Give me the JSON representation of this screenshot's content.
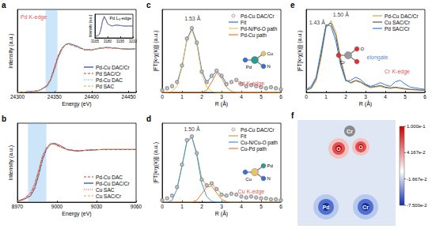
{
  "chart_data": [
    {
      "type": "line",
      "title": "a",
      "xlabel": "Energy (eV)",
      "ylabel": "Intensity (a.u.)",
      "x": [
        24300,
        24320,
        24330,
        24340,
        24345,
        24350,
        24355,
        24360,
        24365,
        24370,
        24380,
        24390,
        24400,
        24410,
        24420,
        24430,
        24440,
        24450,
        24460
      ],
      "xlim": [
        24300,
        24460
      ],
      "xticks": [
        24300,
        24350,
        24400,
        24450
      ],
      "ylim": [
        0,
        1.9
      ],
      "tick_labels": "x",
      "grid": false,
      "legend": "lower right",
      "shaded_x": [
        24338,
        24354
      ],
      "annotations": [
        {
          "text": "Pd K-edge",
          "x": 24322,
          "y": 1.72,
          "color": "#e02020"
        }
      ],
      "series": [
        {
          "name": "Pd-Cu DAC/Cr",
          "color": "#1f3fbf",
          "line_style": "solid",
          "values": [
            0.0,
            0.02,
            0.05,
            0.15,
            0.3,
            0.55,
            0.82,
            1.0,
            1.1,
            1.12,
            1.06,
            0.98,
            0.97,
            1.01,
            1.03,
            1.02,
            1.0,
            0.99,
            1.0
          ]
        },
        {
          "name": "Pd SAC/Cr",
          "color": "#e0304f",
          "line_style": "dashed",
          "values": [
            0.0,
            0.02,
            0.05,
            0.16,
            0.32,
            0.58,
            0.85,
            1.02,
            1.1,
            1.1,
            1.04,
            0.98,
            0.98,
            1.01,
            1.02,
            1.01,
            1.0,
            1.0,
            1.0
          ]
        },
        {
          "name": "Pd-Cu DAC",
          "color": "#3fa9e0",
          "line_style": "dotted",
          "values": [
            0.0,
            0.02,
            0.04,
            0.13,
            0.27,
            0.5,
            0.78,
            0.97,
            1.09,
            1.12,
            1.07,
            0.99,
            0.97,
            1.0,
            1.03,
            1.02,
            1.0,
            0.99,
            1.0
          ]
        },
        {
          "name": "Pd SAC",
          "color": "#f0a030",
          "line_style": "dashed",
          "values": [
            0.0,
            0.02,
            0.05,
            0.14,
            0.29,
            0.53,
            0.8,
            0.99,
            1.1,
            1.11,
            1.05,
            0.98,
            0.97,
            1.01,
            1.03,
            1.02,
            1.0,
            1.0,
            1.0
          ]
        }
      ]
    },
    {
      "type": "line",
      "title": "Pd L₃-edge",
      "ylabel": "Intensity (a.u.)",
      "x": [
        3165,
        3170,
        3172,
        3174,
        3176,
        3178,
        3180,
        3185,
        3190,
        3195,
        3200,
        3205,
        3210
      ],
      "xlim": [
        3165,
        3210
      ],
      "xticks": [
        3165,
        3180,
        3195,
        3210
      ],
      "ylim": [
        0,
        2.2
      ],
      "tick_labels": "x",
      "grid": false,
      "series": [
        {
          "color": "#1f3fbf",
          "line_style": "solid",
          "values": [
            0.1,
            0.3,
            0.8,
            1.6,
            2.0,
            1.7,
            1.3,
            1.1,
            1.2,
            1.15,
            1.1,
            1.1,
            1.1
          ]
        },
        {
          "color": "#888888",
          "line_style": "solid",
          "values": [
            0.1,
            0.3,
            0.75,
            1.5,
            1.9,
            1.65,
            1.3,
            1.1,
            1.18,
            1.15,
            1.1,
            1.1,
            1.1
          ]
        }
      ]
    },
    {
      "type": "line",
      "title": "b",
      "xlabel": "Energy (eV)",
      "ylabel": "Intensity (a.u.)",
      "x": [
        8970,
        8975,
        8980,
        8983,
        8986,
        8989,
        8992,
        8995,
        8998,
        9002,
        9008,
        9015,
        9025,
        9035,
        9045,
        9060
      ],
      "xlim": [
        8970,
        9060
      ],
      "xticks": [
        8970,
        9000,
        9030,
        9060
      ],
      "ylim": [
        0,
        1.5
      ],
      "tick_labels": "x",
      "grid": false,
      "legend": "lower right",
      "shaded_x": [
        8978,
        8992
      ],
      "series": [
        {
          "name": "Pd-Cu DAC",
          "color": "#e0304f",
          "line_style": "dashed",
          "values": [
            0.02,
            0.06,
            0.15,
            0.3,
            0.56,
            0.85,
            1.02,
            1.1,
            1.1,
            1.06,
            1.0,
            0.98,
            0.99,
            1.0,
            1.0,
            1.0
          ]
        },
        {
          "name": "Pd-Cu DAC/Cr",
          "color": "#1f3fbf",
          "line_style": "solid",
          "values": [
            0.02,
            0.05,
            0.12,
            0.25,
            0.5,
            0.8,
            1.0,
            1.1,
            1.12,
            1.08,
            1.0,
            0.97,
            0.99,
            1.0,
            1.0,
            1.0
          ]
        },
        {
          "name": "Cu SAC",
          "color": "#c0392b",
          "line_style": "dotted",
          "values": [
            0.02,
            0.07,
            0.18,
            0.35,
            0.6,
            0.88,
            1.04,
            1.11,
            1.1,
            1.05,
            0.99,
            0.97,
            0.99,
            1.0,
            1.0,
            1.0
          ]
        },
        {
          "name": "Cu SAC/Cr",
          "color": "#f0a030",
          "line_style": "dashed",
          "values": [
            0.02,
            0.05,
            0.13,
            0.27,
            0.52,
            0.82,
            1.01,
            1.1,
            1.11,
            1.07,
            1.0,
            0.97,
            0.99,
            1.0,
            1.0,
            1.0
          ]
        }
      ]
    },
    {
      "type": "line",
      "title": "c",
      "xlabel": "R (Å)",
      "ylabel": "|FT[k³χ(k)]| (a.u.)",
      "x": [
        0,
        0.25,
        0.5,
        0.75,
        1,
        1.25,
        1.5,
        1.75,
        2,
        2.25,
        2.5,
        2.75,
        3,
        3.25,
        3.5,
        3.75,
        4,
        4.25,
        4.5,
        4.75,
        5,
        5.25,
        5.5,
        5.75,
        6
      ],
      "xlim": [
        0,
        6
      ],
      "xticks": [
        0,
        1,
        2,
        3,
        4,
        5,
        6
      ],
      "ylim": [
        0,
        4
      ],
      "tick_labels": "x",
      "grid": false,
      "legend": "upper right",
      "structure": {
        "center": "Pd",
        "ligands": [
          "Cu",
          "N"
        ]
      },
      "annotations": [
        {
          "text": "1.53 Å",
          "x": 1.53,
          "y": 3.55,
          "color": "#000000"
        },
        {
          "text": "Pd K-edge",
          "x": 4.5,
          "y": 0.45,
          "color": "#e02020"
        }
      ],
      "series": [
        {
          "name": "Pd-Cu DAC/Cr",
          "type": "scatter",
          "marker": "circle",
          "color": "#8c8c8c",
          "values": [
            0.1,
            0.2,
            0.3,
            0.5,
            1.3,
            2.6,
            3.1,
            2.4,
            1.0,
            0.5,
            0.8,
            1.05,
            0.8,
            0.4,
            0.5,
            0.6,
            0.4,
            0.3,
            0.35,
            0.3,
            0.25,
            0.2,
            0.25,
            0.2,
            0.15
          ]
        },
        {
          "name": "Fit",
          "color": "#2e6fd8",
          "line_style": "solid",
          "values": [
            null,
            null,
            null,
            0.45,
            1.25,
            2.55,
            3.08,
            2.42,
            1.05,
            0.48,
            0.78,
            1.02,
            0.82,
            0.42,
            null,
            null,
            null,
            null,
            null,
            null,
            null,
            null,
            null,
            null,
            null
          ]
        },
        {
          "name": "Pd-N/Pd-O path",
          "color": "#f2c14e",
          "line_style": "solid",
          "values": [
            0,
            0,
            0.05,
            0.3,
            1.2,
            2.5,
            3.0,
            2.3,
            0.9,
            0.25,
            0.05,
            0,
            0,
            0,
            0,
            0,
            0,
            0,
            0,
            0,
            0,
            0,
            0,
            0,
            0
          ]
        },
        {
          "name": "Pd-Cu path",
          "color": "#e67e22",
          "line_style": "solid",
          "values": [
            0,
            0,
            0,
            0,
            0,
            0,
            0,
            0,
            0,
            0.1,
            0.5,
            0.95,
            0.7,
            0.25,
            0.05,
            0,
            0,
            0,
            0,
            0,
            0,
            0,
            0,
            0,
            0
          ]
        }
      ]
    },
    {
      "type": "line",
      "title": "d",
      "xlabel": "R (Å)",
      "ylabel": "|FT[k³χ(k)]| (a.u.)",
      "x": [
        0,
        0.25,
        0.5,
        0.75,
        1,
        1.25,
        1.5,
        1.75,
        2,
        2.25,
        2.5,
        2.75,
        3,
        3.25,
        3.5,
        3.75,
        4,
        4.25,
        4.5,
        4.75,
        5,
        5.25,
        5.5,
        5.75,
        6
      ],
      "xlim": [
        0,
        6
      ],
      "xticks": [
        0,
        1,
        2,
        3,
        4,
        5,
        6
      ],
      "ylim": [
        0,
        4.2
      ],
      "tick_labels": "x",
      "grid": false,
      "legend": "upper right",
      "structure": {
        "center": "Cu",
        "ligands": [
          "Pd",
          "N"
        ]
      },
      "annotations": [
        {
          "text": "1.50 Å",
          "x": 1.5,
          "y": 3.9,
          "color": "#000000"
        },
        {
          "text": "Cu K-edge",
          "x": 4.5,
          "y": 0.55,
          "color": "#e02020"
        }
      ],
      "series": [
        {
          "name": "Pd-Cu DAC/Cr",
          "type": "scatter",
          "marker": "circle",
          "color": "#8c8c8c",
          "values": [
            0.1,
            0.2,
            0.35,
            0.8,
            2.0,
            3.3,
            3.5,
            2.6,
            1.2,
            0.9,
            1.0,
            0.7,
            0.4,
            0.35,
            0.45,
            0.4,
            0.3,
            0.25,
            0.3,
            0.25,
            0.2,
            0.2,
            0.15,
            0.15,
            0.1
          ]
        },
        {
          "name": "Fit",
          "color": "#c8a050",
          "line_style": "solid",
          "values": [
            null,
            null,
            null,
            0.75,
            1.95,
            3.25,
            3.48,
            2.62,
            1.25,
            0.88,
            0.98,
            0.72,
            0.42,
            0.3,
            null,
            null,
            null,
            null,
            null,
            null,
            null,
            null,
            null,
            null,
            null
          ]
        },
        {
          "name": "Cu-N/Cu-O path",
          "color": "#3a9ad9",
          "line_style": "solid",
          "values": [
            0,
            0,
            0.1,
            0.7,
            1.9,
            3.2,
            3.45,
            2.5,
            1.0,
            0.3,
            0.05,
            0,
            0,
            0,
            0,
            0,
            0,
            0,
            0,
            0,
            0,
            0,
            0,
            0,
            0
          ]
        },
        {
          "name": "Cu-Pd path",
          "color": "#e67e22",
          "line_style": "solid",
          "values": [
            0,
            0,
            0,
            0,
            0,
            0,
            0,
            0.1,
            0.45,
            0.8,
            0.85,
            0.5,
            0.15,
            0.03,
            0,
            0,
            0,
            0,
            0,
            0,
            0,
            0,
            0,
            0,
            0
          ]
        }
      ]
    },
    {
      "type": "line",
      "title": "e",
      "xlabel": "R (Å)",
      "ylabel": "|FT[k³χ(k)]| (a.u.)",
      "x": [
        0,
        0.25,
        0.5,
        0.75,
        1,
        1.25,
        1.5,
        1.75,
        2,
        2.25,
        2.5,
        2.75,
        3,
        3.25,
        3.5,
        3.75,
        4,
        4.25,
        4.5,
        4.75,
        5,
        5.25,
        5.5,
        5.75,
        6
      ],
      "xlim": [
        0,
        6
      ],
      "xticks": [
        0,
        1,
        2,
        3,
        4,
        5,
        6
      ],
      "ylim": [
        0,
        11
      ],
      "tick_labels": "x",
      "grid": false,
      "legend": "upper right",
      "structure": {
        "center": "Cr",
        "ligands": [
          "O"
        ]
      },
      "annotations": [
        {
          "text": "1.50 Å",
          "x": 1.75,
          "y": 10.3,
          "color": "#000000"
        },
        {
          "text": "1.43 Å",
          "x": 0.55,
          "y": 9.3,
          "color": "#000000"
        },
        {
          "text": "elongate",
          "x": 3.6,
          "y": 4.7,
          "color": "#2060d0"
        },
        {
          "text": "Cr K-edge",
          "x": 4.6,
          "y": 2.8,
          "color": "#e02020"
        }
      ],
      "series": [
        {
          "name": "Pd-Cu DAC/Cr",
          "color": "#d9a441",
          "line_style": "solid",
          "values": [
            0.3,
            0.5,
            1.5,
            4.5,
            8.5,
            9.5,
            8.0,
            4.5,
            1.8,
            1.2,
            1.5,
            1.3,
            0.9,
            0.6,
            0.7,
            0.8,
            0.6,
            0.5,
            0.6,
            0.5,
            0.4,
            0.4,
            0.3,
            0.3,
            0.3
          ]
        },
        {
          "name": "Cu SAC/Cr",
          "color": "#555555",
          "line_style": "solid",
          "values": [
            0.3,
            0.6,
            1.8,
            5.0,
            8.8,
            9.2,
            7.5,
            4.0,
            1.6,
            1.3,
            1.6,
            1.4,
            1.0,
            0.7,
            0.8,
            0.9,
            0.7,
            0.6,
            0.7,
            0.6,
            0.5,
            0.4,
            0.4,
            0.3,
            0.3
          ]
        },
        {
          "name": "Pd SAC/Cr",
          "color": "#2e7bd8",
          "line_style": "solid",
          "values": [
            0.4,
            0.8,
            2.0,
            5.5,
            9.0,
            8.8,
            6.8,
            3.5,
            1.5,
            1.6,
            2.0,
            1.7,
            1.1,
            0.8,
            1.0,
            1.3,
            1.0,
            0.8,
            1.4,
            1.6,
            1.1,
            0.7,
            0.6,
            0.5,
            0.4
          ]
        }
      ]
    },
    {
      "type": "illustration",
      "title": "f",
      "labels": [
        "Cr",
        "O",
        "O",
        "Pd",
        "Cr"
      ],
      "colorbar": {
        "range": [
          -0.075,
          0.1
        ],
        "ticks": [
          {
            "value": 0.1,
            "label": "1.000e-1"
          },
          {
            "value": 0.04167,
            "label": "4.167e-2"
          },
          {
            "value": -0.01667,
            "label": "-1.667e-2"
          },
          {
            "value": -0.075,
            "label": "-7.500e-2"
          }
        ]
      }
    }
  ]
}
